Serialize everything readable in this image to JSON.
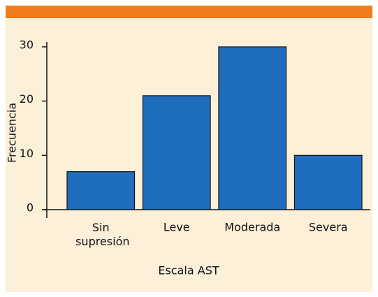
{
  "chart_data": {
    "type": "bar",
    "x_label": "Escala AST",
    "y_label": "Frecuencia",
    "categories": [
      "Sin supresión",
      "Leve",
      "Moderada",
      "Severa"
    ],
    "values": [
      7,
      21,
      30,
      10
    ],
    "color": "#1f6dbd",
    "ylim": [
      0,
      30
    ],
    "yticks": [
      0,
      10,
      20,
      30
    ],
    "grid": false
  }
}
